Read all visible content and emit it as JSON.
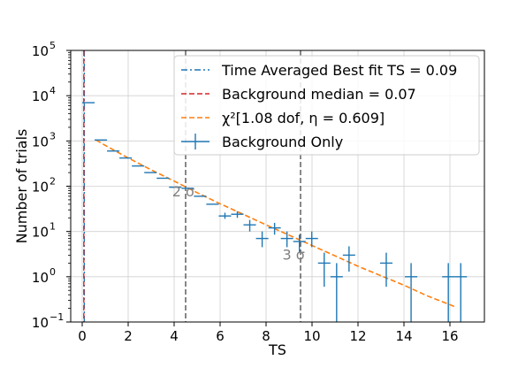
{
  "chart_data": {
    "type": "scatter",
    "xlabel": "TS",
    "ylabel": "Number of trials",
    "xlim": [
      -0.5,
      17.5
    ],
    "ylim": [
      0.1,
      100000
    ],
    "yscale": "log",
    "grid": true,
    "legend_position": "top-right",
    "x_ticks": [
      {
        "value": 0,
        "label": "0"
      },
      {
        "value": 2,
        "label": "2"
      },
      {
        "value": 4,
        "label": "4"
      },
      {
        "value": 6,
        "label": "6"
      },
      {
        "value": 8,
        "label": "8"
      },
      {
        "value": 10,
        "label": "10"
      },
      {
        "value": 12,
        "label": "12"
      },
      {
        "value": 14,
        "label": "14"
      },
      {
        "value": 16,
        "label": "16"
      }
    ],
    "y_ticks": [
      {
        "value": 0.1,
        "base": "10",
        "exp": "−1"
      },
      {
        "value": 1,
        "base": "10",
        "exp": "0"
      },
      {
        "value": 10,
        "base": "10",
        "exp": "1"
      },
      {
        "value": 100,
        "base": "10",
        "exp": "2"
      },
      {
        "value": 1000,
        "base": "10",
        "exp": "3"
      },
      {
        "value": 10000,
        "base": "10",
        "exp": "4"
      },
      {
        "value": 100000,
        "base": "10",
        "exp": "5"
      }
    ],
    "series": [
      {
        "name": "Background Only",
        "kind": "errorbar",
        "color": "#1f77b4",
        "points": [
          {
            "x": 0.27,
            "xerr": 0.27,
            "y": 7000,
            "ylo": 7000,
            "yhi": 7000
          },
          {
            "x": 0.81,
            "xerr": 0.27,
            "y": 1050,
            "ylo": 1050,
            "yhi": 1050
          },
          {
            "x": 1.35,
            "xerr": 0.27,
            "y": 600,
            "ylo": 600,
            "yhi": 600
          },
          {
            "x": 1.89,
            "xerr": 0.27,
            "y": 420,
            "ylo": 420,
            "yhi": 420
          },
          {
            "x": 2.43,
            "xerr": 0.27,
            "y": 280,
            "ylo": 280,
            "yhi": 280
          },
          {
            "x": 2.97,
            "xerr": 0.27,
            "y": 200,
            "ylo": 200,
            "yhi": 200
          },
          {
            "x": 3.51,
            "xerr": 0.27,
            "y": 150,
            "ylo": 150,
            "yhi": 150
          },
          {
            "x": 4.05,
            "xerr": 0.27,
            "y": 95,
            "ylo": 95,
            "yhi": 95
          },
          {
            "x": 4.59,
            "xerr": 0.27,
            "y": 90,
            "ylo": 90,
            "yhi": 90
          },
          {
            "x": 5.13,
            "xerr": 0.27,
            "y": 60,
            "ylo": 60,
            "yhi": 60
          },
          {
            "x": 5.67,
            "xerr": 0.27,
            "y": 40,
            "ylo": 40,
            "yhi": 40
          },
          {
            "x": 6.21,
            "xerr": 0.27,
            "y": 22,
            "ylo": 19,
            "yhi": 26
          },
          {
            "x": 6.75,
            "xerr": 0.27,
            "y": 24,
            "ylo": 20,
            "yhi": 28
          },
          {
            "x": 7.29,
            "xerr": 0.27,
            "y": 14,
            "ylo": 10,
            "yhi": 18
          },
          {
            "x": 7.83,
            "xerr": 0.27,
            "y": 7,
            "ylo": 4.5,
            "yhi": 10
          },
          {
            "x": 8.37,
            "xerr": 0.27,
            "y": 12,
            "ylo": 8.5,
            "yhi": 15.5
          },
          {
            "x": 8.91,
            "xerr": 0.27,
            "y": 7,
            "ylo": 4.5,
            "yhi": 10
          },
          {
            "x": 9.45,
            "xerr": 0.27,
            "y": 6,
            "ylo": 3.5,
            "yhi": 8.5
          },
          {
            "x": 9.99,
            "xerr": 0.27,
            "y": 7,
            "ylo": 4.5,
            "yhi": 10
          },
          {
            "x": 10.53,
            "xerr": 0.27,
            "y": 2,
            "ylo": 0.6,
            "yhi": 3.4
          },
          {
            "x": 11.07,
            "xerr": 0.27,
            "y": 1,
            "ylo": 0.1,
            "yhi": 2
          },
          {
            "x": 11.61,
            "xerr": 0.27,
            "y": 3,
            "ylo": 1.3,
            "yhi": 4.7
          },
          {
            "x": 13.23,
            "xerr": 0.27,
            "y": 2,
            "ylo": 0.6,
            "yhi": 3.4
          },
          {
            "x": 14.31,
            "xerr": 0.27,
            "y": 1,
            "ylo": 0.1,
            "yhi": 2
          },
          {
            "x": 15.93,
            "xerr": 0.27,
            "y": 1,
            "ylo": 0.1,
            "yhi": 2
          },
          {
            "x": 16.47,
            "xerr": 0.27,
            "y": 1,
            "ylo": 0.1,
            "yhi": 2
          }
        ]
      },
      {
        "name": "χ²[1.08 dof, η = 0.609]",
        "kind": "line",
        "color": "#ff7f0e",
        "dash": "dashed",
        "x": [
          0.6,
          1.0,
          2.0,
          3.0,
          4.0,
          5.0,
          6.0,
          7.0,
          8.0,
          9.0,
          10.0,
          11.0,
          12.0,
          13.0,
          14.0,
          15.0,
          16.2
        ],
        "y": [
          1050,
          800,
          420,
          230,
          130,
          72,
          41,
          24,
          14,
          8.3,
          4.9,
          2.9,
          1.7,
          1.05,
          0.65,
          0.38,
          0.22
        ]
      }
    ],
    "reference_lines": [
      {
        "name": "Time Averaged Best fit TS = 0.09",
        "x": 0.09,
        "color": "#1f77b4",
        "dash": "dashdot"
      },
      {
        "name": "Background median = 0.07",
        "x": 0.07,
        "color": "#d62728",
        "dash": "dashed"
      },
      {
        "x": 4.5,
        "color": "#555555",
        "dash": "dashed"
      },
      {
        "x": 9.5,
        "color": "#555555",
        "dash": "dashed"
      }
    ],
    "annotations": [
      {
        "text": "2 σ",
        "x": 4.4,
        "y": 60
      },
      {
        "text": "3 σ",
        "x": 9.2,
        "y": 2.4
      }
    ],
    "legend": [
      {
        "label": "Time Averaged Best fit TS = 0.09",
        "marker": "dashdot",
        "color": "#1f77b4"
      },
      {
        "label": "Background median = 0.07",
        "marker": "dashed",
        "color": "#d62728"
      },
      {
        "label": "χ²[1.08 dof, η = 0.609]",
        "marker": "dashed",
        "color": "#ff7f0e"
      },
      {
        "label": "Background Only",
        "marker": "cross",
        "color": "#1f77b4"
      }
    ]
  }
}
